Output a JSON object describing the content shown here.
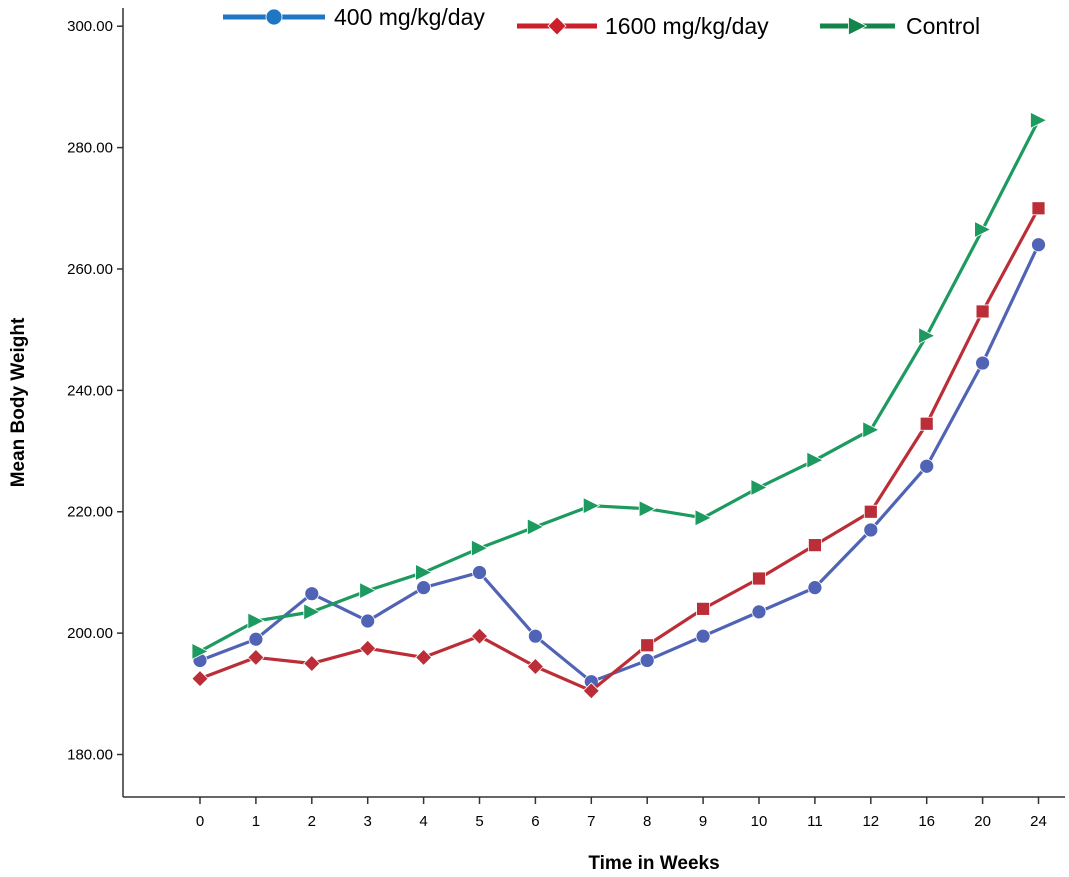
{
  "chart_data": {
    "type": "line",
    "title": "",
    "xlabel": "Time in Weeks",
    "ylabel": "Mean Body Weight",
    "categories": [
      "0",
      "1",
      "2",
      "3",
      "4",
      "5",
      "6",
      "7",
      "8",
      "9",
      "10",
      "11",
      "12",
      "16",
      "20",
      "24"
    ],
    "ylim": [
      173,
      303
    ],
    "yticks": [
      "180.00",
      "200.00",
      "220.00",
      "240.00",
      "260.00",
      "280.00",
      "300.00"
    ],
    "ytick_values": [
      180,
      200,
      220,
      240,
      260,
      280,
      300
    ],
    "grid": false,
    "legend_position": "top",
    "series": [
      {
        "name": "400 mg/kg/day",
        "line_color": "#5063b5",
        "legend_color": "#1f77c4",
        "marker": "circle",
        "values": [
          195.5,
          199,
          206.5,
          202,
          207.5,
          210,
          199.5,
          192,
          195.5,
          199.5,
          203.5,
          207.5,
          217,
          227.5,
          244.5,
          264
        ]
      },
      {
        "name": "1600 mg/kg/day",
        "line_color": "#bb2e37",
        "legend_color": "#cc1f2a",
        "marker": "diamond-square",
        "values": [
          192.5,
          196,
          195,
          197.5,
          196,
          199.5,
          194.5,
          190.5,
          198,
          204,
          209,
          214.5,
          220,
          234.5,
          253,
          270
        ]
      },
      {
        "name": "Control",
        "line_color": "#1d9a5f",
        "legend_color": "#14844a",
        "marker": "triangle",
        "values": [
          197,
          202,
          203.5,
          207,
          210,
          214,
          217.5,
          221,
          220.5,
          219,
          224,
          228.5,
          233.5,
          249,
          266.5,
          284.5
        ]
      }
    ]
  }
}
